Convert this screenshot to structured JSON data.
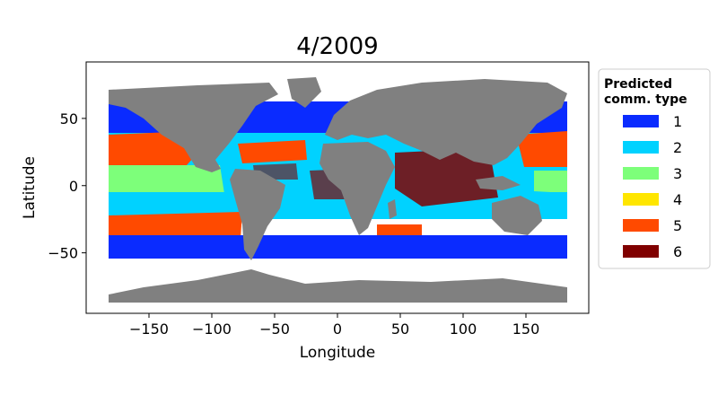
{
  "map": {
    "title": "4/2009",
    "xlabel": "Longitude",
    "ylabel": "Latitude",
    "x_range": [
      -200,
      200
    ],
    "y_range": [
      -95,
      92
    ],
    "x_ticks": [
      -150,
      -100,
      -50,
      0,
      50,
      100,
      150
    ],
    "x_tick_labels": [
      "−150",
      "−100",
      "−50",
      "0",
      "50",
      "100",
      "150"
    ],
    "y_ticks": [
      50,
      0,
      -50
    ],
    "y_tick_labels": [
      "50",
      "0",
      "−50"
    ],
    "land_color": "#808080",
    "legend": {
      "title_line1": "Predicted",
      "title_line2": "comm. type",
      "placement": "outside-right",
      "entries": [
        {
          "label": "1",
          "color": "#0a2bff"
        },
        {
          "label": "2",
          "color": "#00d2ff"
        },
        {
          "label": "3",
          "color": "#7dff7a"
        },
        {
          "label": "4",
          "color": "#ffe600"
        },
        {
          "label": "5",
          "color": "#ff4a00"
        },
        {
          "label": "6",
          "color": "#800000"
        }
      ]
    }
  }
}
